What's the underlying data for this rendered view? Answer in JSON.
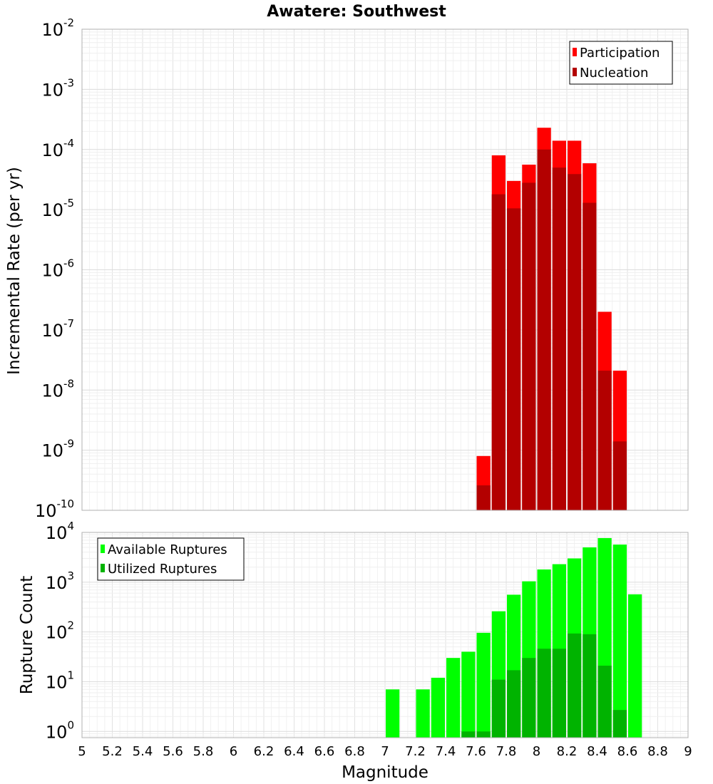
{
  "title": "Awatere: Southwest",
  "xlabel": "Magnitude",
  "chart_data": [
    {
      "type": "bar",
      "ylabel": "Incremental Rate (per yr)",
      "yscale": "log",
      "ylim": [
        1e-10,
        0.01
      ],
      "xlim": [
        5,
        9
      ],
      "grid": true,
      "legend_position": "top-right",
      "x": [
        7.65,
        7.75,
        7.85,
        7.95,
        8.05,
        8.15,
        8.25,
        8.35,
        8.45,
        8.55
      ],
      "series": [
        {
          "name": "Participation",
          "color": "#ff0000",
          "values": [
            8e-10,
            8e-05,
            3e-05,
            5.6e-05,
            0.00023,
            0.00014,
            0.00014,
            5.9e-05,
            2e-07,
            2.1e-08
          ]
        },
        {
          "name": "Nucleation",
          "color": "#b30000",
          "values": [
            2.6e-10,
            1.8e-05,
            1.05e-05,
            2.8e-05,
            0.0001,
            5e-05,
            3.9e-05,
            1.3e-05,
            2.1e-08,
            1.4e-09
          ]
        }
      ]
    },
    {
      "type": "bar",
      "ylabel": "Rupture Count",
      "yscale": "log",
      "ylim": [
        0.75,
        10000
      ],
      "xlim": [
        5,
        9
      ],
      "grid": true,
      "legend_position": "top-left",
      "x": [
        7.05,
        7.15,
        7.25,
        7.35,
        7.45,
        7.55,
        7.65,
        7.75,
        7.85,
        7.95,
        8.05,
        8.15,
        8.25,
        8.35,
        8.45,
        8.55,
        8.65
      ],
      "series": [
        {
          "name": "Available Ruptures",
          "color": "#00ff00",
          "values": [
            7,
            null,
            7,
            12,
            30,
            40,
            96,
            260,
            560,
            1040,
            1800,
            2300,
            3000,
            5000,
            7700,
            5700,
            570
          ]
        },
        {
          "name": "Utilized Ruptures",
          "color": "#00b300",
          "values": [
            null,
            null,
            null,
            null,
            null,
            1,
            1,
            11,
            17,
            30,
            46,
            46,
            93,
            90,
            21,
            2.7,
            null
          ]
        }
      ]
    }
  ],
  "x_ticks": [
    "5",
    "5.2",
    "5.4",
    "5.6",
    "5.8",
    "6",
    "6.2",
    "6.4",
    "6.6",
    "6.8",
    "7",
    "7.2",
    "7.4",
    "7.6",
    "7.8",
    "8",
    "8.2",
    "8.4",
    "8.6",
    "8.8",
    "9"
  ],
  "top_y_ticks": [
    {
      "base": "10",
      "exp": "-2"
    },
    {
      "base": "10",
      "exp": "-3"
    },
    {
      "base": "10",
      "exp": "-4"
    },
    {
      "base": "10",
      "exp": "-5"
    },
    {
      "base": "10",
      "exp": "-6"
    },
    {
      "base": "10",
      "exp": "-7"
    },
    {
      "base": "10",
      "exp": "-8"
    },
    {
      "base": "10",
      "exp": "-9"
    },
    {
      "base": "10",
      "exp": "-10"
    }
  ],
  "bottom_y_ticks": [
    {
      "base": "10",
      "exp": "4"
    },
    {
      "base": "10",
      "exp": "3"
    },
    {
      "base": "10",
      "exp": "2"
    },
    {
      "base": "10",
      "exp": "1"
    },
    {
      "base": "10",
      "exp": "0"
    }
  ]
}
